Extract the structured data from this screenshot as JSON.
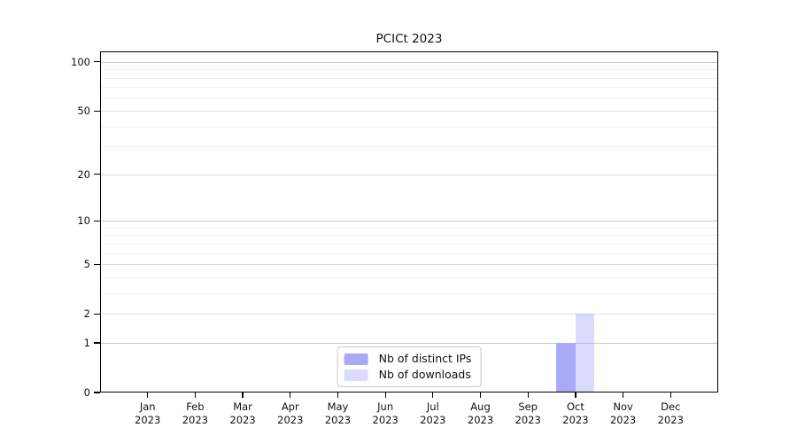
{
  "chart_data": {
    "type": "bar",
    "title": "PCICt 2023",
    "categories": [
      "Jan",
      "Feb",
      "Mar",
      "Apr",
      "May",
      "Jun",
      "Jul",
      "Aug",
      "Sep",
      "Oct",
      "Nov",
      "Dec"
    ],
    "x_year": "2023",
    "series": [
      {
        "name": "Nb of distinct IPs",
        "color": "#a9a9f7",
        "alpha": 1,
        "values": [
          0,
          0,
          0,
          0,
          0,
          0,
          0,
          0,
          0,
          1,
          0,
          0
        ]
      },
      {
        "name": "Nb of downloads",
        "color": "#aaaaf7",
        "alpha": 0.42,
        "values": [
          0,
          0,
          0,
          0,
          0,
          0,
          0,
          0,
          0,
          2,
          0,
          0
        ]
      }
    ],
    "yscale": "log1p",
    "ylim": [
      0,
      116
    ],
    "yticks": [
      0,
      1,
      2,
      5,
      10,
      20,
      50,
      100
    ],
    "yticks_minor": [
      3,
      4,
      6,
      7,
      8,
      9,
      30,
      40,
      60,
      70,
      80,
      90
    ],
    "grid": true,
    "legend_position": "lower center"
  },
  "colors": {
    "background": "#ffffff",
    "spine": "#000000",
    "text": "#111111",
    "grid_power10": "#c9c9c9",
    "grid_labeled": "#dddddd",
    "grid_minor": "#efefef",
    "legend_border": "#c9c9c9",
    "bar_distinct_ips": "#a9a9f7",
    "bar_downloads_flat": "#dbdbf8"
  }
}
